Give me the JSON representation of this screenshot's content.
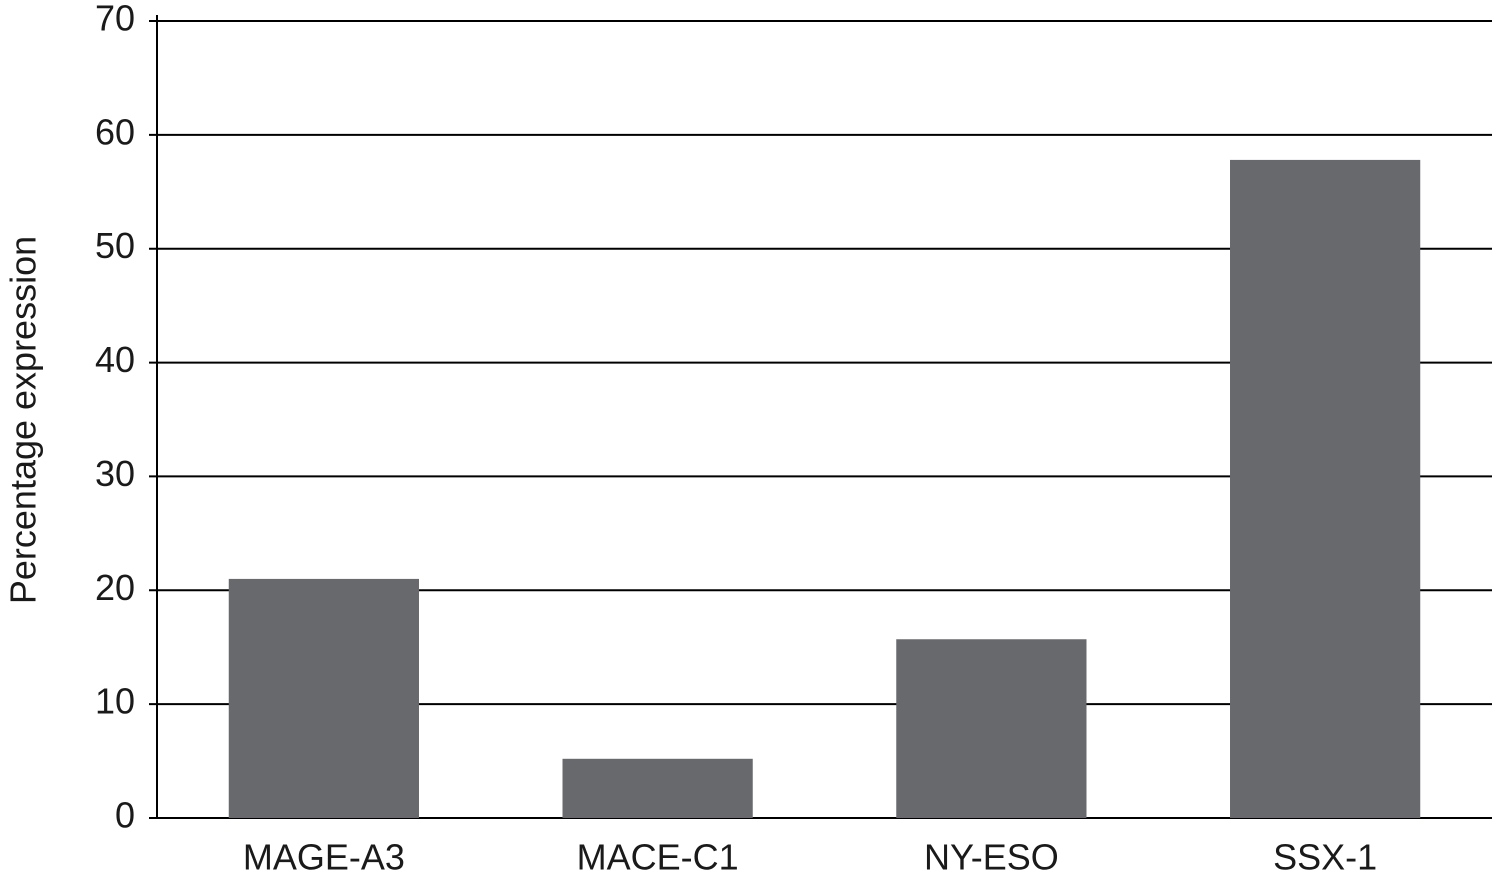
{
  "chart_data": {
    "type": "bar",
    "y_label": "Percentage expression",
    "categories": [
      "MAGE-A3",
      "MACE-C1",
      "NY-ESO",
      "SSX-1"
    ],
    "values": [
      21,
      5.2,
      15.7,
      57.8
    ],
    "color": "#68696d",
    "ylim": [
      0,
      70
    ],
    "yticks": [
      0,
      10,
      20,
      30,
      40,
      50,
      60,
      70
    ],
    "grid": true
  }
}
